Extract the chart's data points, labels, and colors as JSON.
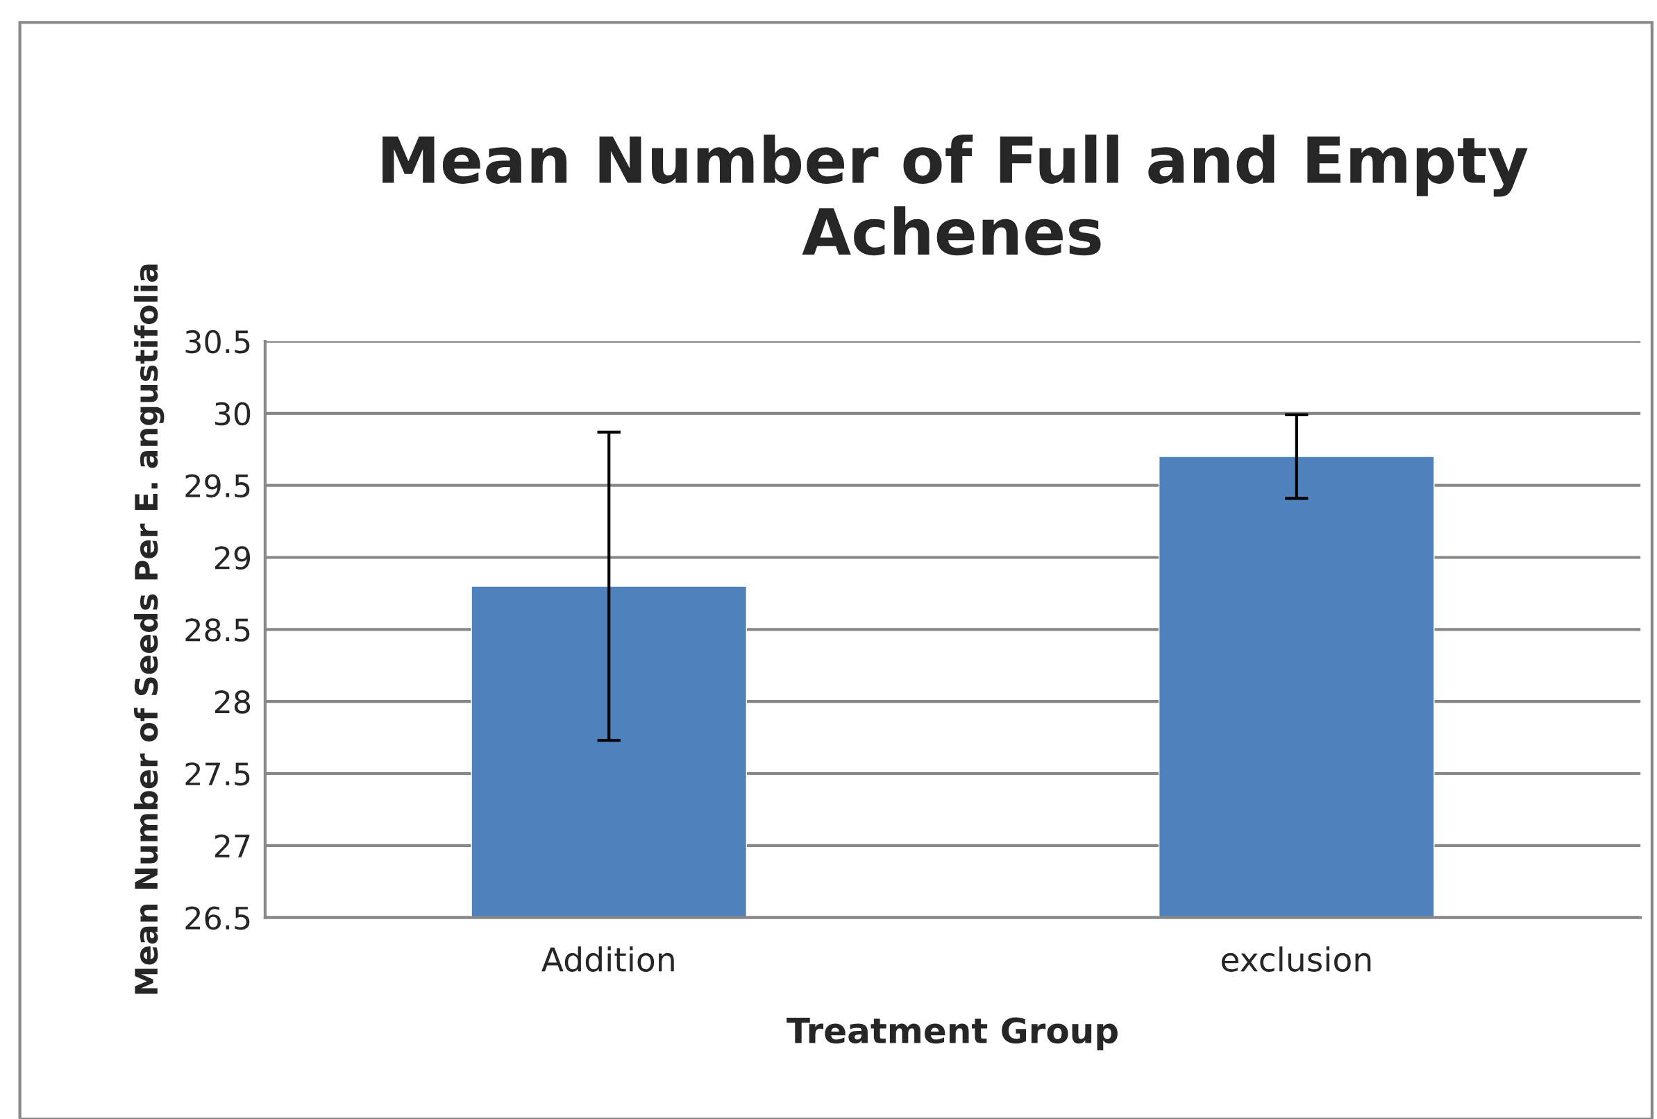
{
  "chart_data": {
    "type": "bar",
    "title": "Mean Number of Full and Empty\nAchenes",
    "xlabel": "Treatment Group",
    "ylabel": "Mean Number of Seeds Per E. angustifolia",
    "categories": [
      "Addition",
      "exclusion"
    ],
    "values": [
      28.8,
      29.7
    ],
    "errors": [
      1.07,
      0.29
    ],
    "color": "#4f81bd",
    "ylim": [
      26.5,
      30.5
    ],
    "yticks": [
      26.5,
      27,
      27.5,
      28,
      28.5,
      29,
      29.5,
      30,
      30.5
    ],
    "grid": "y"
  }
}
